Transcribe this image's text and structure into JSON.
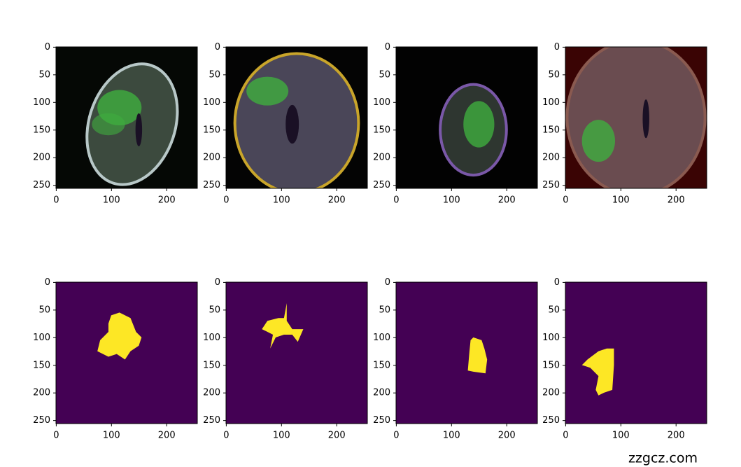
{
  "chart_data": [
    {
      "type": "image",
      "xlim": [
        -0.5,
        255.5
      ],
      "ylim": [
        255.5,
        -0.5
      ],
      "xticks": [
        0,
        100,
        200
      ],
      "yticks": [
        0,
        50,
        100,
        150,
        200,
        250
      ]
    },
    {
      "type": "image",
      "xlim": [
        -0.5,
        255.5
      ],
      "ylim": [
        255.5,
        -0.5
      ],
      "xticks": [
        0,
        100,
        200
      ],
      "yticks": [
        0,
        50,
        100,
        150,
        200,
        250
      ]
    },
    {
      "type": "image",
      "xlim": [
        -0.5,
        255.5
      ],
      "ylim": [
        255.5,
        -0.5
      ],
      "xticks": [
        0,
        100,
        200
      ],
      "yticks": [
        0,
        50,
        100,
        150,
        200,
        250
      ]
    },
    {
      "type": "image",
      "xlim": [
        -0.5,
        255.5
      ],
      "ylim": [
        255.5,
        -0.5
      ],
      "xticks": [
        0,
        100,
        200
      ],
      "yticks": [
        0,
        50,
        100,
        150,
        200,
        250
      ]
    },
    {
      "type": "image",
      "xlim": [
        -0.5,
        255.5
      ],
      "ylim": [
        255.5,
        -0.5
      ],
      "xticks": [
        0,
        100,
        200
      ],
      "yticks": [
        0,
        50,
        100,
        150,
        200,
        250
      ]
    },
    {
      "type": "image",
      "xlim": [
        -0.5,
        255.5
      ],
      "ylim": [
        255.5,
        -0.5
      ],
      "xticks": [
        0,
        100,
        200
      ],
      "yticks": [
        0,
        50,
        100,
        150,
        200,
        250
      ]
    },
    {
      "type": "image",
      "xlim": [
        -0.5,
        255.5
      ],
      "ylim": [
        255.5,
        -0.5
      ],
      "xticks": [
        0,
        100,
        200
      ],
      "yticks": [
        0,
        50,
        100,
        150,
        200,
        250
      ]
    },
    {
      "type": "image",
      "xlim": [
        -0.5,
        255.5
      ],
      "ylim": [
        255.5,
        -0.5
      ],
      "xticks": [
        0,
        100,
        200
      ],
      "yticks": [
        0,
        50,
        100,
        150,
        200,
        250
      ]
    }
  ],
  "watermark": "zzgcz.com"
}
